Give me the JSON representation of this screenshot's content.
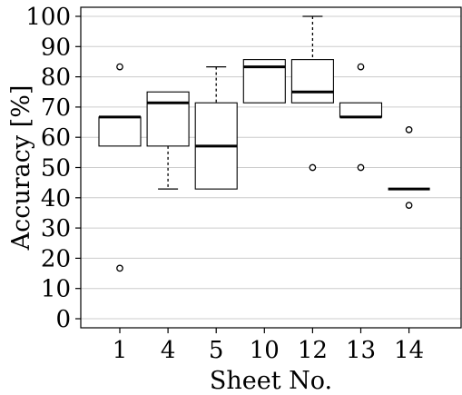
{
  "chart_data": {
    "type": "boxplot",
    "xlabel": "Sheet No.",
    "ylabel": "Accuracy [%]",
    "ylim": [
      -3,
      103
    ],
    "yticks": [
      0,
      10,
      20,
      30,
      40,
      50,
      60,
      70,
      80,
      90,
      100
    ],
    "grid": "horizontal",
    "categories": [
      "1",
      "4",
      "5",
      "10",
      "12",
      "13",
      "14"
    ],
    "boxes": [
      {
        "category": "1",
        "whisker_low": 57.1,
        "q1": 57.1,
        "median": 66.7,
        "q3": 66.7,
        "whisker_high": 66.7,
        "outliers": [
          83.3,
          16.7
        ]
      },
      {
        "category": "4",
        "whisker_low": 42.9,
        "q1": 57.1,
        "median": 71.4,
        "q3": 75.0,
        "whisker_high": 75.0,
        "outliers": []
      },
      {
        "category": "5",
        "whisker_low": 42.9,
        "q1": 42.9,
        "median": 57.1,
        "q3": 71.4,
        "whisker_high": 83.3,
        "outliers": []
      },
      {
        "category": "10",
        "whisker_low": 71.4,
        "q1": 71.4,
        "median": 83.3,
        "q3": 85.7,
        "whisker_high": 85.7,
        "outliers": []
      },
      {
        "category": "12",
        "whisker_low": 71.4,
        "q1": 71.4,
        "median": 75.0,
        "q3": 85.7,
        "whisker_high": 100.0,
        "outliers": [
          50.0
        ]
      },
      {
        "category": "13",
        "whisker_low": 66.7,
        "q1": 66.7,
        "median": 66.7,
        "q3": 71.4,
        "whisker_high": 71.4,
        "outliers": [
          83.3,
          50.0
        ]
      },
      {
        "category": "14",
        "whisker_low": 42.9,
        "q1": 42.9,
        "median": 42.9,
        "q3": 42.9,
        "whisker_high": 42.9,
        "outliers": [
          62.5,
          37.5
        ]
      }
    ],
    "colors": {
      "box_fill": "#ffffff",
      "box_stroke": "#000000",
      "median": "#000000",
      "grid": "#cccccc"
    }
  }
}
